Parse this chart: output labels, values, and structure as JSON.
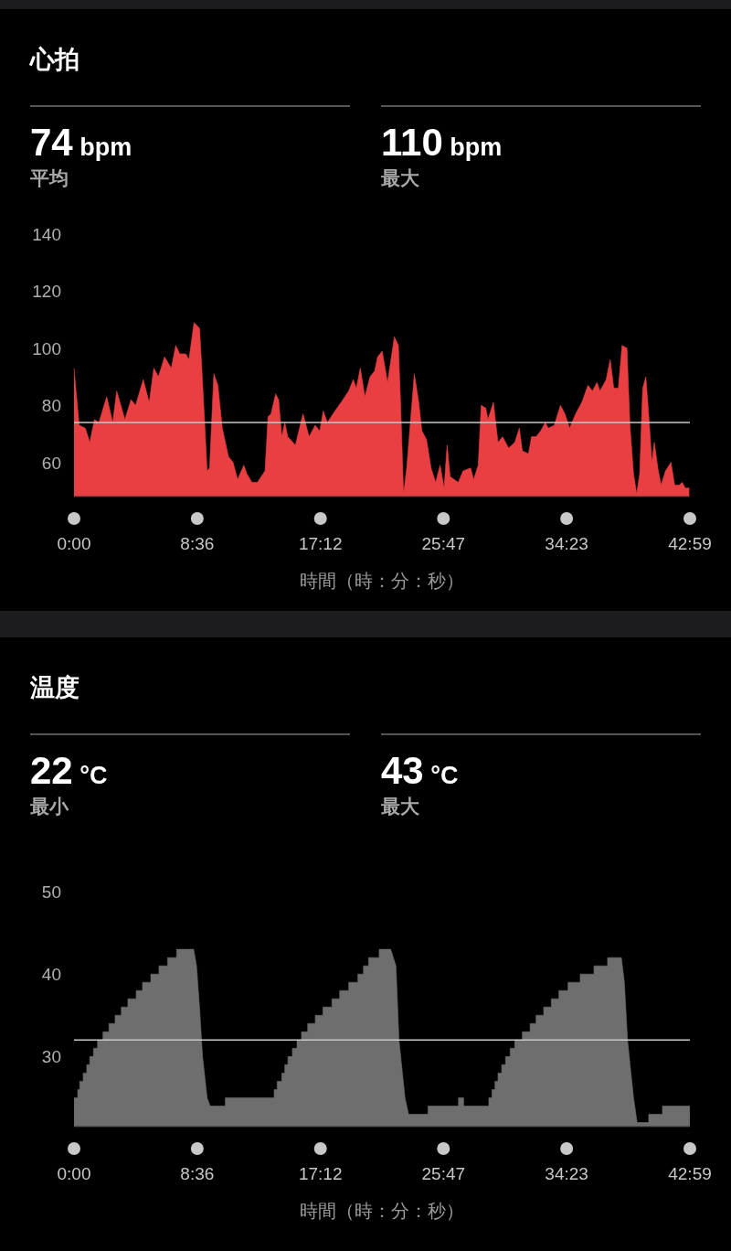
{
  "chart_data": [
    {
      "type": "area",
      "title": "心拍",
      "annotations": [
        "74 bpm",
        "平均",
        "110 bpm",
        "最大"
      ],
      "xlabel": "時間（時：分：秒）",
      "color": "#ea3f42",
      "x": [
        0,
        0.36,
        0.79,
        1.1,
        1.43,
        1.74,
        2.28,
        2.7,
        2.98,
        3.55,
        3.98,
        4.3,
        4.83,
        5.25,
        5.57,
        5.89,
        6.32,
        6.79,
        7.1,
        7.38,
        7.8,
        8.02,
        8.38,
        8.76,
        8.91,
        9.29,
        9.46,
        9.76,
        10.04,
        10.35,
        10.78,
        11.1,
        11.42,
        11.85,
        12.06,
        12.42,
        12.8,
        13.33,
        13.54,
        13.75,
        14.07,
        14.28,
        14.5,
        14.71,
        14.92,
        15.45,
        15.98,
        16.41,
        16.83,
        17.15,
        17.4,
        17.68,
        18.21,
        18.64,
        19.17,
        19.49,
        19.7,
        19.98,
        20.3,
        20.66,
        20.98,
        21.19,
        21.51,
        21.88,
        22.36,
        22.64,
        22.79,
        23.0,
        23.22,
        23.75,
        24.06,
        24.28,
        24.6,
        24.92,
        25.24,
        25.55,
        25.83,
        26.04,
        26.25,
        26.82,
        27.15,
        27.68,
        27.89,
        28.21,
        28.42,
        28.74,
        28.89,
        29.27,
        29.59,
        29.91,
        30.33,
        30.76,
        31.08,
        31.29,
        31.72,
        31.93,
        32.25,
        32.57,
        32.89,
        33.1,
        33.52,
        33.95,
        34.26,
        34.59,
        35.01,
        35.44,
        35.87,
        36.18,
        36.5,
        36.71,
        37.14,
        37.42,
        37.67,
        37.99,
        38.25,
        38.59,
        38.8,
        39.05,
        39.27,
        39.48,
        39.69,
        39.91,
        40.12,
        40.33,
        40.5,
        40.75,
        40.97,
        41.28,
        41.66,
        41.92,
        42.24,
        42.45,
        42.66,
        42.94
      ],
      "values": [
        93,
        73,
        72,
        67,
        75,
        74,
        83,
        74,
        85,
        75,
        82,
        80,
        89,
        81,
        93,
        90,
        97,
        93,
        101,
        98,
        98,
        96,
        109,
        107,
        94,
        57,
        58,
        91,
        87,
        72,
        62,
        60,
        54,
        59,
        56,
        53,
        53,
        57,
        76,
        77,
        84,
        82,
        69,
        74,
        69,
        66,
        77,
        69,
        73,
        71,
        78,
        74,
        78,
        81,
        85,
        89,
        86,
        93,
        83,
        90,
        92,
        97,
        99,
        88,
        104,
        101,
        81,
        49,
        58,
        91,
        81,
        71,
        68,
        58,
        53,
        59,
        51,
        66,
        55,
        53,
        57,
        58,
        54,
        59,
        80,
        79,
        75,
        81,
        67,
        69,
        65,
        67,
        72,
        64,
        63,
        69,
        69,
        71,
        74,
        72,
        73,
        80,
        77,
        72,
        77,
        81,
        87,
        85,
        88,
        85,
        89,
        96,
        86,
        86,
        101,
        100,
        73,
        56,
        49,
        56,
        86,
        90,
        76,
        60,
        67,
        58,
        52,
        57,
        60,
        52,
        52,
        53,
        51,
        51
      ],
      "xlim": [
        0,
        42.983
      ],
      "xticks": [
        {
          "value": 0,
          "label": "0:00"
        },
        {
          "value": 8.6,
          "label": "8:36"
        },
        {
          "value": 17.2,
          "label": "17:12"
        },
        {
          "value": 25.783,
          "label": "25:47"
        },
        {
          "value": 34.383,
          "label": "34:23"
        },
        {
          "value": 42.983,
          "label": "42:59"
        }
      ],
      "ylim": [
        48,
        140
      ],
      "yticks": [
        60,
        80,
        100,
        120,
        140
      ],
      "ref_lines": [
        {
          "axis": "y",
          "value": 74,
          "color": "#c8c8c8"
        }
      ]
    },
    {
      "type": "area",
      "title": "温度",
      "annotations": [
        "22 °C",
        "最小",
        "43 °C",
        "最大"
      ],
      "xlabel": "時間（時：分：秒）",
      "color": "#6e6e6e",
      "x": [
        0,
        0.26,
        0.26,
        0.4,
        0.4,
        0.64,
        0.64,
        0.89,
        0.89,
        1.1,
        1.1,
        1.36,
        1.36,
        1.64,
        1.64,
        2.02,
        2.02,
        2.44,
        2.44,
        2.87,
        2.87,
        3.3,
        3.3,
        3.76,
        3.76,
        4.34,
        4.34,
        4.78,
        4.78,
        5.36,
        5.36,
        5.93,
        5.93,
        6.53,
        6.53,
        7.16,
        7.16,
        8.35,
        8.55,
        8.76,
        8.97,
        9.29,
        9.5,
        10.56,
        10.56,
        13.97,
        13.97,
        14.18,
        14.18,
        14.5,
        14.5,
        14.71,
        14.71,
        14.93,
        14.93,
        15.24,
        15.24,
        15.56,
        15.56,
        15.88,
        15.88,
        16.31,
        16.31,
        16.84,
        16.84,
        17.37,
        17.37,
        18.0,
        18.0,
        18.54,
        18.54,
        19.17,
        19.17,
        19.81,
        19.81,
        20.2,
        20.2,
        20.56,
        20.56,
        21.3,
        21.3,
        22.1,
        22.47,
        22.68,
        23.1,
        23.35,
        24.71,
        24.71,
        26.83,
        26.83,
        27.19,
        27.19,
        28.95,
        28.95,
        29.17,
        29.17,
        29.38,
        29.38,
        29.59,
        29.59,
        29.85,
        29.85,
        30.12,
        30.12,
        30.44,
        30.44,
        30.76,
        30.76,
        31.29,
        31.29,
        31.83,
        31.83,
        32.25,
        32.25,
        32.78,
        32.78,
        33.31,
        33.31,
        33.84,
        33.84,
        34.48,
        34.48,
        35.33,
        35.33,
        36.29,
        36.29,
        37.24,
        37.24,
        38.2,
        38.41,
        38.63,
        39.05,
        39.3,
        40.11,
        40.11,
        41.07,
        41.07,
        42.98
      ],
      "values": [
        25,
        25,
        26,
        26,
        27,
        27,
        28,
        28,
        29,
        29,
        30,
        30,
        31,
        31,
        32,
        32,
        33,
        33,
        34,
        34,
        35,
        35,
        36,
        36,
        37,
        37,
        38,
        38,
        39,
        39,
        40,
        40,
        41,
        41,
        42,
        42,
        43,
        43,
        41,
        36,
        30,
        25,
        24,
        24,
        25,
        25,
        26,
        26,
        27,
        27,
        28,
        28,
        29,
        29,
        30,
        30,
        31,
        31,
        32,
        32,
        33,
        33,
        34,
        34,
        35,
        35,
        36,
        36,
        37,
        37,
        38,
        38,
        39,
        39,
        40,
        40,
        41,
        41,
        42,
        42,
        43,
        43,
        41,
        32,
        25,
        23,
        23,
        24,
        24,
        25,
        25,
        24,
        24,
        25,
        25,
        26,
        26,
        27,
        27,
        28,
        28,
        29,
        29,
        30,
        30,
        31,
        31,
        32,
        32,
        33,
        33,
        34,
        34,
        35,
        35,
        36,
        36,
        37,
        37,
        38,
        38,
        39,
        39,
        40,
        40,
        41,
        41,
        42,
        42,
        39,
        32,
        25,
        22,
        22,
        23,
        23,
        24,
        24
      ],
      "xlim": [
        0,
        42.983
      ],
      "xticks": [
        {
          "value": 0,
          "label": "0:00"
        },
        {
          "value": 8.6,
          "label": "8:36"
        },
        {
          "value": 17.2,
          "label": "17:12"
        },
        {
          "value": 25.783,
          "label": "25:47"
        },
        {
          "value": 34.383,
          "label": "34:23"
        },
        {
          "value": 42.983,
          "label": "42:59"
        }
      ],
      "ylim": [
        21.5,
        50
      ],
      "yticks": [
        30,
        40,
        50
      ],
      "ref_lines": [
        {
          "axis": "y",
          "value": 32,
          "color": "#c8c8c8"
        }
      ]
    }
  ]
}
